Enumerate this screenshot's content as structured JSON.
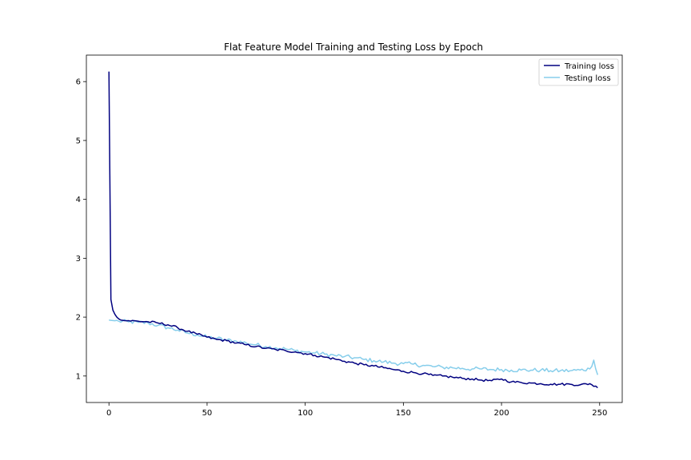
{
  "chart_data": {
    "type": "line",
    "title": "Flat Feature Model Training and Testing Loss by Epoch",
    "xlabel": "",
    "ylabel": "",
    "xlim": [
      -11.5,
      261.5
    ],
    "ylim": [
      0.55,
      6.45
    ],
    "xticks": [
      0,
      50,
      100,
      150,
      200,
      250
    ],
    "yticks": [
      1,
      2,
      3,
      4,
      5,
      6
    ],
    "grid": false,
    "legend": {
      "position": "top-right",
      "entries": [
        "Training loss",
        "Testing loss"
      ]
    },
    "x_range": [
      0,
      249
    ],
    "series": [
      {
        "name": "Training loss",
        "color": "#000080",
        "anchors": [
          [
            0,
            6.17
          ],
          [
            1,
            2.3
          ],
          [
            2,
            2.12
          ],
          [
            3,
            2.05
          ],
          [
            4,
            2.0
          ],
          [
            5,
            1.97
          ],
          [
            6,
            1.95
          ],
          [
            8,
            1.94
          ],
          [
            10,
            1.94
          ],
          [
            15,
            1.93
          ],
          [
            20,
            1.92
          ],
          [
            25,
            1.9
          ],
          [
            30,
            1.87
          ],
          [
            35,
            1.82
          ],
          [
            40,
            1.76
          ],
          [
            45,
            1.71
          ],
          [
            50,
            1.66
          ],
          [
            55,
            1.62
          ],
          [
            60,
            1.6
          ],
          [
            65,
            1.56
          ],
          [
            70,
            1.53
          ],
          [
            75,
            1.5
          ],
          [
            80,
            1.47
          ],
          [
            85,
            1.45
          ],
          [
            90,
            1.43
          ],
          [
            95,
            1.41
          ],
          [
            100,
            1.38
          ],
          [
            105,
            1.35
          ],
          [
            110,
            1.32
          ],
          [
            115,
            1.29
          ],
          [
            120,
            1.25
          ],
          [
            125,
            1.22
          ],
          [
            130,
            1.19
          ],
          [
            135,
            1.17
          ],
          [
            140,
            1.14
          ],
          [
            145,
            1.11
          ],
          [
            150,
            1.08
          ],
          [
            155,
            1.06
          ],
          [
            160,
            1.04
          ],
          [
            165,
            1.01
          ],
          [
            170,
            1.0
          ],
          [
            175,
            0.98
          ],
          [
            180,
            0.96
          ],
          [
            185,
            0.95
          ],
          [
            190,
            0.93
          ],
          [
            195,
            0.92
          ],
          [
            200,
            0.95
          ],
          [
            205,
            0.9
          ],
          [
            210,
            0.89
          ],
          [
            215,
            0.88
          ],
          [
            220,
            0.87
          ],
          [
            225,
            0.86
          ],
          [
            230,
            0.86
          ],
          [
            235,
            0.86
          ],
          [
            240,
            0.85
          ],
          [
            245,
            0.87
          ],
          [
            249,
            0.8
          ]
        ],
        "noise": 0.02
      },
      {
        "name": "Testing loss",
        "color": "#87CEEB",
        "anchors": [
          [
            0,
            1.95
          ],
          [
            5,
            1.93
          ],
          [
            10,
            1.92
          ],
          [
            15,
            1.91
          ],
          [
            20,
            1.9
          ],
          [
            25,
            1.86
          ],
          [
            30,
            1.82
          ],
          [
            35,
            1.78
          ],
          [
            40,
            1.73
          ],
          [
            45,
            1.7
          ],
          [
            50,
            1.66
          ],
          [
            55,
            1.64
          ],
          [
            60,
            1.61
          ],
          [
            65,
            1.59
          ],
          [
            70,
            1.56
          ],
          [
            75,
            1.53
          ],
          [
            80,
            1.5
          ],
          [
            85,
            1.48
          ],
          [
            90,
            1.46
          ],
          [
            95,
            1.43
          ],
          [
            100,
            1.41
          ],
          [
            105,
            1.39
          ],
          [
            110,
            1.37
          ],
          [
            115,
            1.35
          ],
          [
            120,
            1.33
          ],
          [
            125,
            1.31
          ],
          [
            130,
            1.28
          ],
          [
            135,
            1.26
          ],
          [
            140,
            1.24
          ],
          [
            145,
            1.22
          ],
          [
            150,
            1.21
          ],
          [
            155,
            1.2
          ],
          [
            160,
            1.18
          ],
          [
            165,
            1.16
          ],
          [
            170,
            1.15
          ],
          [
            175,
            1.14
          ],
          [
            180,
            1.13
          ],
          [
            185,
            1.12
          ],
          [
            190,
            1.12
          ],
          [
            195,
            1.11
          ],
          [
            200,
            1.11
          ],
          [
            205,
            1.1
          ],
          [
            210,
            1.1
          ],
          [
            215,
            1.1
          ],
          [
            220,
            1.1
          ],
          [
            225,
            1.09
          ],
          [
            230,
            1.09
          ],
          [
            235,
            1.09
          ],
          [
            240,
            1.1
          ],
          [
            245,
            1.12
          ],
          [
            247,
            1.27
          ],
          [
            249,
            1.02
          ]
        ],
        "noise": 0.035
      }
    ]
  }
}
